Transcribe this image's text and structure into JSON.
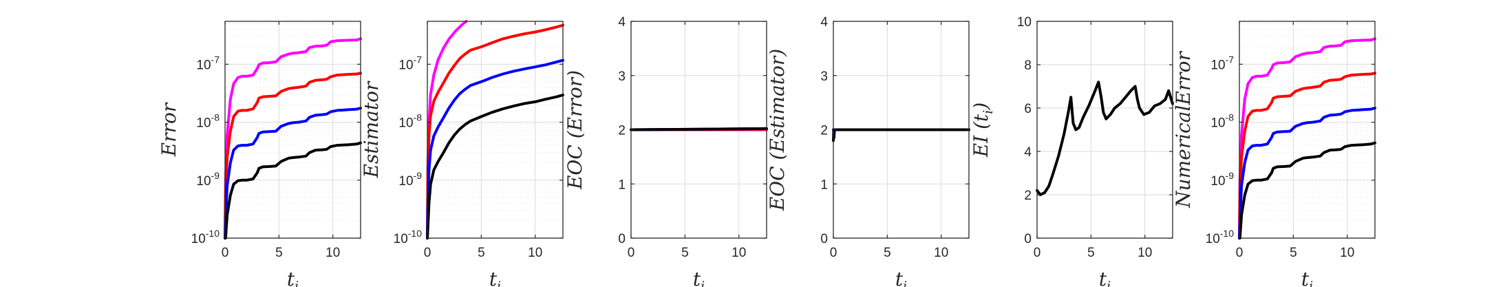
{
  "colors": {
    "magenta": "#ff00ff",
    "red": "#ff0000",
    "blue": "#0000ff",
    "black": "#000000"
  },
  "chart_data": [
    {
      "type": "line",
      "yscale": "log",
      "grid": true,
      "xlabel": "t_i",
      "ylabel": "Error",
      "xlim": [
        0,
        12.57
      ],
      "ylim": [
        1e-10,
        5.5e-07
      ],
      "xticks": [
        0,
        5,
        10
      ],
      "yticks": [
        {
          "v": 1e-10,
          "base": "10",
          "exp": "-10"
        },
        {
          "v": 1e-09,
          "base": "10",
          "exp": "-9"
        },
        {
          "v": 1e-08,
          "base": "10",
          "exp": "-8"
        },
        {
          "v": 1e-07,
          "base": "10",
          "exp": "-7"
        }
      ],
      "series": [
        {
          "color": "magenta",
          "x": [
            0,
            0.05,
            0.2,
            0.5,
            0.8,
            1.2,
            1.57,
            2,
            2.6,
            3,
            3.14,
            3.5,
            4.2,
            4.71,
            5.2,
            5.9,
            6.28,
            6.8,
            7.5,
            7.85,
            8.4,
            9,
            9.42,
            9.8,
            10.4,
            10.99,
            11.5,
            12.2,
            12.57
          ],
          "y": [
            1e-10,
            1e-09,
            6e-09,
            2.5e-08,
            4.6e-08,
            5.9e-08,
            6.2e-08,
            6.2e-08,
            6.5e-08,
            8.5e-08,
            9.8e-08,
            1.05e-07,
            1.07e-07,
            1.1e-07,
            1.35e-07,
            1.5e-07,
            1.55e-07,
            1.58e-07,
            1.65e-07,
            1.95e-07,
            2.05e-07,
            2.08e-07,
            2.12e-07,
            2.45e-07,
            2.55e-07,
            2.58e-07,
            2.6e-07,
            2.62e-07,
            2.75e-07
          ]
        },
        {
          "color": "red",
          "x": [
            0,
            0.05,
            0.2,
            0.5,
            0.8,
            1.2,
            1.57,
            2,
            2.6,
            3,
            3.14,
            3.5,
            4.2,
            4.71,
            5.2,
            5.9,
            6.28,
            6.8,
            7.5,
            7.85,
            8.4,
            9,
            9.42,
            9.8,
            10.4,
            10.99,
            11.5,
            12.2,
            12.57
          ],
          "y": [
            1e-10,
            6e-10,
            2.5e-09,
            7e-09,
            1.25e-08,
            1.55e-08,
            1.6e-08,
            1.6e-08,
            1.7e-08,
            2.2e-08,
            2.6e-08,
            2.75e-08,
            2.8e-08,
            2.85e-08,
            3.4e-08,
            3.8e-08,
            3.9e-08,
            4e-08,
            4.2e-08,
            4.9e-08,
            5.3e-08,
            5.4e-08,
            5.5e-08,
            6.1e-08,
            6.5e-08,
            6.6e-08,
            6.7e-08,
            6.8e-08,
            7e-08
          ]
        },
        {
          "color": "blue",
          "x": [
            0,
            0.05,
            0.2,
            0.5,
            0.8,
            1.2,
            1.57,
            2,
            2.6,
            3,
            3.14,
            3.5,
            4.2,
            4.71,
            5.2,
            5.9,
            6.28,
            6.8,
            7.5,
            7.85,
            8.4,
            9,
            9.42,
            9.8,
            10.4,
            10.99,
            11.5,
            12.2,
            12.57
          ],
          "y": [
            1e-10,
            2e-10,
            8e-10,
            2e-09,
            3.3e-09,
            3.9e-09,
            4e-09,
            4e-09,
            4.2e-09,
            5.5e-09,
            6.4e-09,
            6.8e-09,
            6.9e-09,
            7e-09,
            8.5e-09,
            9.5e-09,
            9.8e-09,
            1e-08,
            1.05e-08,
            1.22e-08,
            1.32e-08,
            1.35e-08,
            1.38e-08,
            1.52e-08,
            1.6e-08,
            1.62e-08,
            1.65e-08,
            1.68e-08,
            1.75e-08
          ]
        },
        {
          "color": "black",
          "x": [
            0,
            0.05,
            0.2,
            0.5,
            0.8,
            1.2,
            1.57,
            2,
            2.6,
            3,
            3.14,
            3.5,
            4.2,
            4.71,
            5.2,
            5.9,
            6.28,
            6.8,
            7.5,
            7.85,
            8.4,
            9,
            9.42,
            9.8,
            10.4,
            10.99,
            11.5,
            12.2,
            12.57
          ],
          "y": [
            1e-10,
            1e-10,
            2.5e-10,
            5.5e-10,
            8.5e-10,
            9.8e-10,
            1e-09,
            1e-09,
            1.05e-09,
            1.35e-09,
            1.6e-09,
            1.7e-09,
            1.72e-09,
            1.75e-09,
            2.1e-09,
            2.4e-09,
            2.45e-09,
            2.5e-09,
            2.6e-09,
            3e-09,
            3.3e-09,
            3.35e-09,
            3.4e-09,
            3.8e-09,
            4e-09,
            4.05e-09,
            4.1e-09,
            4.2e-09,
            4.4e-09
          ]
        }
      ]
    },
    {
      "type": "line",
      "yscale": "log",
      "grid": true,
      "xlabel": "t_i",
      "ylabel": "Estimator",
      "xlim": [
        0,
        12.57
      ],
      "ylim": [
        1e-10,
        5.5e-07
      ],
      "xticks": [
        0,
        5,
        10
      ],
      "yticks": [
        {
          "v": 1e-10,
          "base": "10",
          "exp": "-10"
        },
        {
          "v": 1e-09,
          "base": "10",
          "exp": "-9"
        },
        {
          "v": 1e-08,
          "base": "10",
          "exp": "-8"
        },
        {
          "v": 1e-07,
          "base": "10",
          "exp": "-7"
        }
      ],
      "series": [
        {
          "color": "magenta",
          "x": [
            0,
            0.05,
            0.15,
            0.3,
            0.6,
            1,
            1.5,
            2,
            2.6,
            3.2,
            3.6
          ],
          "y": [
            1e-10,
            2e-09,
            1e-08,
            3e-08,
            6.5e-08,
            1.2e-07,
            1.9e-07,
            2.7e-07,
            3.7e-07,
            4.8e-07,
            5.5e-07
          ]
        },
        {
          "color": "red",
          "x": [
            0,
            0.05,
            0.15,
            0.3,
            0.6,
            1,
            1.5,
            2,
            2.5,
            3,
            3.5,
            4,
            5,
            6,
            7,
            8,
            9,
            10,
            11,
            12,
            12.57
          ],
          "y": [
            1e-10,
            1.5e-09,
            6e-09,
            1.3e-08,
            2.3e-08,
            3.3e-08,
            4.8e-08,
            7e-08,
            9.5e-08,
            1.25e-07,
            1.5e-07,
            1.75e-07,
            2e-07,
            2.35e-07,
            2.75e-07,
            3.05e-07,
            3.35e-07,
            3.6e-07,
            3.95e-07,
            4.4e-07,
            4.7e-07
          ]
        },
        {
          "color": "blue",
          "x": [
            0,
            0.05,
            0.15,
            0.3,
            0.6,
            1,
            1.5,
            2,
            2.5,
            3,
            3.5,
            4,
            5,
            6,
            7,
            8,
            9,
            10,
            11,
            12,
            12.57
          ],
          "y": [
            1e-10,
            4e-10,
            1.5e-09,
            3.3e-09,
            5.8e-09,
            8.3e-09,
            1.2e-08,
            1.75e-08,
            2.4e-08,
            3.1e-08,
            3.7e-08,
            4.3e-08,
            5e-08,
            5.9e-08,
            6.8e-08,
            7.6e-08,
            8.3e-08,
            9e-08,
            9.8e-08,
            1.1e-07,
            1.17e-07
          ]
        },
        {
          "color": "black",
          "x": [
            0,
            0.05,
            0.15,
            0.3,
            0.6,
            1,
            1.5,
            2,
            2.5,
            3,
            3.5,
            4,
            5,
            6,
            7,
            8,
            9,
            10,
            11,
            12,
            12.57
          ],
          "y": [
            1e-10,
            1.5e-10,
            4e-10,
            8.5e-10,
            1.5e-09,
            2.1e-09,
            3e-09,
            4.4e-09,
            6e-09,
            7.6e-09,
            9.1e-09,
            1.05e-08,
            1.25e-08,
            1.48e-08,
            1.7e-08,
            1.9e-08,
            2.1e-08,
            2.25e-08,
            2.5e-08,
            2.75e-08,
            2.95e-08
          ]
        }
      ]
    },
    {
      "type": "line",
      "yscale": "linear",
      "grid": true,
      "xlabel": "t_i",
      "ylabel": "EOC (Error)",
      "xlim": [
        0,
        12.57
      ],
      "ylim": [
        0,
        4
      ],
      "xticks": [
        0,
        5,
        10
      ],
      "yticks": [
        {
          "v": 0,
          "label": "0"
        },
        {
          "v": 1,
          "label": "1"
        },
        {
          "v": 2,
          "label": "2"
        },
        {
          "v": 3,
          "label": "3"
        },
        {
          "v": 4,
          "label": "4"
        }
      ],
      "series": [
        {
          "color": "magenta",
          "x": [
            0,
            12.57
          ],
          "y": [
            2.0,
            2.0
          ]
        },
        {
          "color": "red",
          "x": [
            0,
            12.57
          ],
          "y": [
            2.0,
            2.01
          ]
        },
        {
          "color": "blue",
          "x": [
            0,
            12.57
          ],
          "y": [
            2.0,
            2.02
          ]
        },
        {
          "color": "black",
          "x": [
            0,
            12.57
          ],
          "y": [
            2.0,
            2.02
          ]
        }
      ]
    },
    {
      "type": "line",
      "yscale": "linear",
      "grid": true,
      "xlabel": "t_i",
      "ylabel": "EOC (Estimator)",
      "xlim": [
        0,
        12.57
      ],
      "ylim": [
        0,
        4
      ],
      "xticks": [
        0,
        5,
        10
      ],
      "yticks": [
        {
          "v": 0,
          "label": "0"
        },
        {
          "v": 1,
          "label": "1"
        },
        {
          "v": 2,
          "label": "2"
        },
        {
          "v": 3,
          "label": "3"
        },
        {
          "v": 4,
          "label": "4"
        }
      ],
      "series": [
        {
          "color": "magenta",
          "x": [
            0,
            12.57
          ],
          "y": [
            2.0,
            2.0
          ]
        },
        {
          "color": "red",
          "x": [
            0,
            12.57
          ],
          "y": [
            2.0,
            2.0
          ]
        },
        {
          "color": "blue",
          "x": [
            0,
            12.57
          ],
          "y": [
            2.0,
            2.0
          ]
        },
        {
          "color": "black",
          "x": [
            0,
            0.03,
            0.06,
            0.1,
            12.57
          ],
          "y": [
            1.8,
            2.0,
            1.85,
            2.0,
            2.0
          ]
        }
      ]
    },
    {
      "type": "line",
      "yscale": "linear",
      "grid": true,
      "xlabel": "t_i",
      "ylabel": "EI (t_i)",
      "xlim": [
        0,
        12.57
      ],
      "ylim": [
        0,
        10
      ],
      "xticks": [
        0,
        5,
        10
      ],
      "yticks": [
        {
          "v": 0,
          "label": "0"
        },
        {
          "v": 2,
          "label": "2"
        },
        {
          "v": 4,
          "label": "4"
        },
        {
          "v": 6,
          "label": "6"
        },
        {
          "v": 8,
          "label": "8"
        },
        {
          "v": 10,
          "label": "10"
        }
      ],
      "series": [
        {
          "color": "black",
          "x": [
            0,
            0.3,
            0.7,
            1.1,
            1.5,
            2,
            2.5,
            2.9,
            3.14,
            3.35,
            3.6,
            3.9,
            4.3,
            4.8,
            5.3,
            5.7,
            5.95,
            6.15,
            6.4,
            6.8,
            7.2,
            7.7,
            8.2,
            8.7,
            9.1,
            9.3,
            9.5,
            9.9,
            10.4,
            10.9,
            11.4,
            11.9,
            12.2,
            12.57
          ],
          "y": [
            2.2,
            2.0,
            2.1,
            2.4,
            3.0,
            3.8,
            4.8,
            5.8,
            6.5,
            5.3,
            5.0,
            5.1,
            5.6,
            6.1,
            6.7,
            7.2,
            6.5,
            5.8,
            5.5,
            5.7,
            6.0,
            6.2,
            6.5,
            6.8,
            7.0,
            6.4,
            6.0,
            5.7,
            5.8,
            6.1,
            6.2,
            6.4,
            6.8,
            6.2
          ]
        }
      ]
    },
    {
      "type": "line",
      "yscale": "log",
      "grid": true,
      "xlabel": "t_i",
      "ylabel": "NumericalError",
      "xlim": [
        0,
        12.57
      ],
      "ylim": [
        1e-10,
        5.5e-07
      ],
      "xticks": [
        0,
        5,
        10
      ],
      "yticks": [
        {
          "v": 1e-10,
          "base": "10",
          "exp": "-10"
        },
        {
          "v": 1e-09,
          "base": "10",
          "exp": "-9"
        },
        {
          "v": 1e-08,
          "base": "10",
          "exp": "-8"
        },
        {
          "v": 1e-07,
          "base": "10",
          "exp": "-7"
        }
      ],
      "series": [
        {
          "color": "magenta",
          "x": [
            0,
            0.05,
            0.2,
            0.5,
            0.8,
            1.2,
            1.57,
            2,
            2.6,
            3,
            3.14,
            3.5,
            4.2,
            4.71,
            5.2,
            5.9,
            6.28,
            6.8,
            7.5,
            7.85,
            8.4,
            9,
            9.42,
            9.8,
            10.4,
            10.99,
            11.5,
            12.2,
            12.57
          ],
          "y": [
            1e-10,
            1e-09,
            6e-09,
            2.5e-08,
            4.6e-08,
            5.9e-08,
            6.2e-08,
            6.2e-08,
            6.5e-08,
            8.5e-08,
            9.8e-08,
            1.05e-07,
            1.07e-07,
            1.1e-07,
            1.35e-07,
            1.5e-07,
            1.55e-07,
            1.58e-07,
            1.65e-07,
            1.95e-07,
            2.05e-07,
            2.08e-07,
            2.12e-07,
            2.45e-07,
            2.55e-07,
            2.58e-07,
            2.6e-07,
            2.62e-07,
            2.75e-07
          ]
        },
        {
          "color": "red",
          "x": [
            0,
            0.05,
            0.2,
            0.5,
            0.8,
            1.2,
            1.57,
            2,
            2.6,
            3,
            3.14,
            3.5,
            4.2,
            4.71,
            5.2,
            5.9,
            6.28,
            6.8,
            7.5,
            7.85,
            8.4,
            9,
            9.42,
            9.8,
            10.4,
            10.99,
            11.5,
            12.2,
            12.57
          ],
          "y": [
            1e-10,
            6e-10,
            2.5e-09,
            7e-09,
            1.25e-08,
            1.55e-08,
            1.6e-08,
            1.6e-08,
            1.7e-08,
            2.2e-08,
            2.6e-08,
            2.75e-08,
            2.8e-08,
            2.85e-08,
            3.4e-08,
            3.8e-08,
            3.9e-08,
            4e-08,
            4.2e-08,
            4.9e-08,
            5.3e-08,
            5.4e-08,
            5.5e-08,
            6.1e-08,
            6.5e-08,
            6.6e-08,
            6.7e-08,
            6.8e-08,
            7e-08
          ]
        },
        {
          "color": "blue",
          "x": [
            0,
            0.05,
            0.2,
            0.5,
            0.8,
            1.2,
            1.57,
            2,
            2.6,
            3,
            3.14,
            3.5,
            4.2,
            4.71,
            5.2,
            5.9,
            6.28,
            6.8,
            7.5,
            7.85,
            8.4,
            9,
            9.42,
            9.8,
            10.4,
            10.99,
            11.5,
            12.2,
            12.57
          ],
          "y": [
            1e-10,
            2e-10,
            8e-10,
            2e-09,
            3.3e-09,
            3.9e-09,
            4e-09,
            4e-09,
            4.2e-09,
            5.5e-09,
            6.4e-09,
            6.8e-09,
            6.9e-09,
            7e-09,
            8.5e-09,
            9.5e-09,
            9.8e-09,
            1e-08,
            1.05e-08,
            1.22e-08,
            1.32e-08,
            1.35e-08,
            1.38e-08,
            1.52e-08,
            1.6e-08,
            1.62e-08,
            1.65e-08,
            1.68e-08,
            1.75e-08
          ]
        },
        {
          "color": "black",
          "x": [
            0,
            0.05,
            0.2,
            0.5,
            0.8,
            1.2,
            1.57,
            2,
            2.6,
            3,
            3.14,
            3.5,
            4.2,
            4.71,
            5.2,
            5.9,
            6.28,
            6.8,
            7.5,
            7.85,
            8.4,
            9,
            9.42,
            9.8,
            10.4,
            10.99,
            11.5,
            12.2,
            12.57
          ],
          "y": [
            1e-10,
            1e-10,
            2.5e-10,
            5.5e-10,
            8.5e-10,
            9.8e-10,
            1e-09,
            1e-09,
            1.05e-09,
            1.35e-09,
            1.6e-09,
            1.7e-09,
            1.72e-09,
            1.75e-09,
            2.1e-09,
            2.4e-09,
            2.45e-09,
            2.5e-09,
            2.6e-09,
            3e-09,
            3.3e-09,
            3.35e-09,
            3.4e-09,
            3.8e-09,
            4e-09,
            4.05e-09,
            4.1e-09,
            4.2e-09,
            4.4e-09
          ]
        }
      ]
    }
  ]
}
